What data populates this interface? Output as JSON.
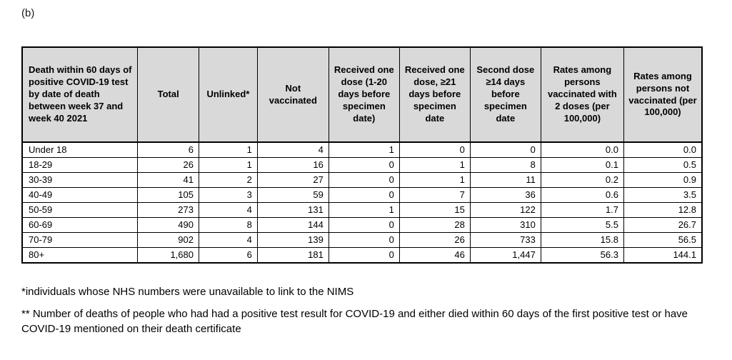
{
  "label": "(b)",
  "table": {
    "columns": [
      "Death within 60 days of positive COVID-19 test by date of death between week 37 and week 40 2021",
      "Total",
      "Unlinked*",
      "Not vaccinated",
      "Received one dose (1-20 days before specimen date)",
      "Received one dose, ≥21 days before specimen date",
      "Second dose ≥14 days before specimen date",
      "Rates among persons vaccinated with 2 doses (per 100,000)",
      "Rates among persons not vaccinated (per 100,000)"
    ],
    "col_widths": [
      "17.0%",
      "9.0%",
      "8.6%",
      "10.5%",
      "10.4%",
      "10.4%",
      "10.4%",
      "12.2%",
      "11.5%"
    ],
    "rows": [
      {
        "age": "Under 18",
        "values": [
          "6",
          "1",
          "4",
          "1",
          "0",
          "0",
          "0.0",
          "0.0"
        ]
      },
      {
        "age": "18-29",
        "values": [
          "26",
          "1",
          "16",
          "0",
          "1",
          "8",
          "0.1",
          "0.5"
        ]
      },
      {
        "age": "30-39",
        "values": [
          "41",
          "2",
          "27",
          "0",
          "1",
          "11",
          "0.2",
          "0.9"
        ]
      },
      {
        "age": "40-49",
        "values": [
          "105",
          "3",
          "59",
          "0",
          "7",
          "36",
          "0.6",
          "3.5"
        ]
      },
      {
        "age": "50-59",
        "values": [
          "273",
          "4",
          "131",
          "1",
          "15",
          "122",
          "1.7",
          "12.8"
        ]
      },
      {
        "age": "60-69",
        "values": [
          "490",
          "8",
          "144",
          "0",
          "28",
          "310",
          "5.5",
          "26.7"
        ]
      },
      {
        "age": "70-79",
        "values": [
          "902",
          "4",
          "139",
          "0",
          "26",
          "733",
          "15.8",
          "56.5"
        ]
      },
      {
        "age": "80+",
        "values": [
          "1,680",
          "6",
          "181",
          "0",
          "46",
          "1,447",
          "56.3",
          "144.1"
        ]
      }
    ]
  },
  "footnotes": [
    "*individuals whose NHS numbers were unavailable to link to the NIMS",
    "** Number of deaths of people who had had a positive test result for COVID-19 and either died within 60 days of the first positive test or have COVID-19 mentioned on their death certificate"
  ],
  "colors": {
    "header_background": "#d9d9d9",
    "border": "#000000",
    "text": "#000000"
  }
}
